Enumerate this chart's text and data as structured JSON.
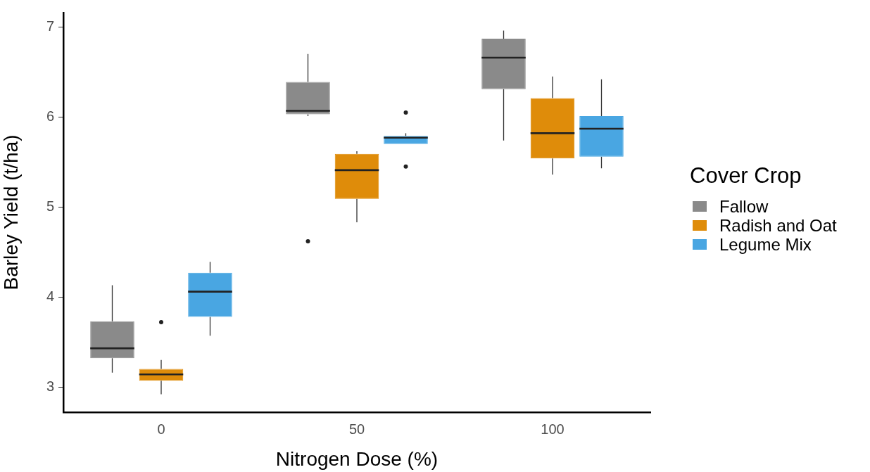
{
  "chart_data": {
    "type": "box",
    "xlabel": "Nitrogen Dose (%)",
    "ylabel": "Barley Yield (t/ha)",
    "legend_title": "Cover Crop",
    "legend": "right",
    "grid": false,
    "categories": [
      "0",
      "50",
      "100"
    ],
    "ylim": [
      2.72,
      7.16
    ],
    "yticks": [
      3,
      4,
      5,
      6,
      7
    ],
    "series": [
      {
        "name": "Fallow",
        "color": "#8a8a8a",
        "boxes": [
          {
            "low": 3.16,
            "q1": 3.32,
            "median": 3.43,
            "q3": 3.73,
            "high": 4.13
          },
          {
            "low": 6.01,
            "q1": 6.03,
            "median": 6.07,
            "q3": 6.39,
            "high": 6.7,
            "outliers": [
              4.62
            ]
          },
          {
            "low": 5.74,
            "q1": 6.31,
            "median": 6.66,
            "q3": 6.87,
            "high": 6.96
          }
        ]
      },
      {
        "name": "Radish and Oat",
        "color": "#df8c0a",
        "boxes": [
          {
            "low": 2.92,
            "q1": 3.07,
            "median": 3.14,
            "q3": 3.2,
            "high": 3.3,
            "outliers": [
              3.72
            ]
          },
          {
            "low": 4.83,
            "q1": 5.09,
            "median": 5.41,
            "q3": 5.59,
            "high": 5.62
          },
          {
            "low": 5.36,
            "q1": 5.54,
            "median": 5.82,
            "q3": 6.21,
            "high": 6.45
          }
        ]
      },
      {
        "name": "Legume Mix",
        "color": "#49a6e2",
        "boxes": [
          {
            "low": 3.57,
            "q1": 3.78,
            "median": 4.06,
            "q3": 4.27,
            "high": 4.39
          },
          {
            "low": 5.7,
            "q1": 5.7,
            "median": 5.77,
            "q3": 5.79,
            "high": 5.82,
            "outliers": [
              6.05,
              5.45
            ]
          },
          {
            "low": 5.43,
            "q1": 5.56,
            "median": 5.87,
            "q3": 6.01,
            "high": 6.42
          }
        ]
      }
    ]
  }
}
